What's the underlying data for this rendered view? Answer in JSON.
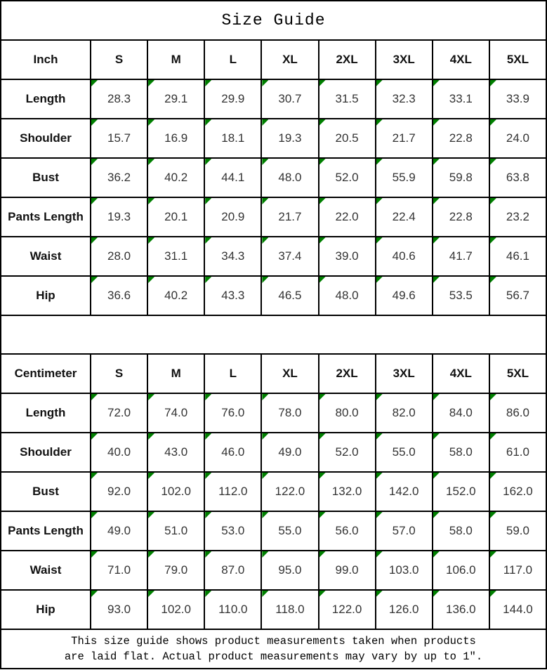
{
  "title": "Size Guide",
  "colors": {
    "triangle_green": "#008000",
    "grid_black": "#000000"
  },
  "sizes": [
    "S",
    "M",
    "L",
    "XL",
    "2XL",
    "3XL",
    "4XL",
    "5XL"
  ],
  "tables": [
    {
      "unit": "Inch",
      "rows": [
        {
          "label": "Length",
          "values": [
            "28.3",
            "29.1",
            "29.9",
            "30.7",
            "31.5",
            "32.3",
            "33.1",
            "33.9"
          ]
        },
        {
          "label": "Shoulder",
          "values": [
            "15.7",
            "16.9",
            "18.1",
            "19.3",
            "20.5",
            "21.7",
            "22.8",
            "24.0"
          ]
        },
        {
          "label": "Bust",
          "values": [
            "36.2",
            "40.2",
            "44.1",
            "48.0",
            "52.0",
            "55.9",
            "59.8",
            "63.8"
          ]
        },
        {
          "label": "Pants Length",
          "values": [
            "19.3",
            "20.1",
            "20.9",
            "21.7",
            "22.0",
            "22.4",
            "22.8",
            "23.2"
          ]
        },
        {
          "label": "Waist",
          "values": [
            "28.0",
            "31.1",
            "34.3",
            "37.4",
            "39.0",
            "40.6",
            "41.7",
            "46.1"
          ]
        },
        {
          "label": "Hip",
          "values": [
            "36.6",
            "40.2",
            "43.3",
            "46.5",
            "48.0",
            "49.6",
            "53.5",
            "56.7"
          ]
        }
      ]
    },
    {
      "unit": "Centimeter",
      "rows": [
        {
          "label": "Length",
          "values": [
            "72.0",
            "74.0",
            "76.0",
            "78.0",
            "80.0",
            "82.0",
            "84.0",
            "86.0"
          ]
        },
        {
          "label": "Shoulder",
          "values": [
            "40.0",
            "43.0",
            "46.0",
            "49.0",
            "52.0",
            "55.0",
            "58.0",
            "61.0"
          ]
        },
        {
          "label": "Bust",
          "values": [
            "92.0",
            "102.0",
            "112.0",
            "122.0",
            "132.0",
            "142.0",
            "152.0",
            "162.0"
          ]
        },
        {
          "label": "Pants Length",
          "values": [
            "49.0",
            "51.0",
            "53.0",
            "55.0",
            "56.0",
            "57.0",
            "58.0",
            "59.0"
          ]
        },
        {
          "label": "Waist",
          "values": [
            "71.0",
            "79.0",
            "87.0",
            "95.0",
            "99.0",
            "103.0",
            "106.0",
            "117.0"
          ]
        },
        {
          "label": "Hip",
          "values": [
            "93.0",
            "102.0",
            "110.0",
            "118.0",
            "122.0",
            "126.0",
            "136.0",
            "144.0"
          ]
        }
      ]
    }
  ],
  "footer": {
    "line1": "This size guide shows product measurements taken when products",
    "line2": "are laid flat. Actual product measurements may vary by up to 1″."
  }
}
